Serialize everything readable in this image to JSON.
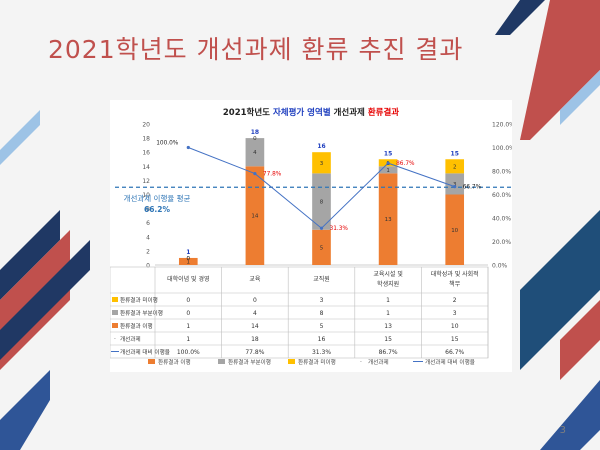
{
  "slide": {
    "title": "2021학년도 개선과제 환류 추진 결과",
    "page_number": "3"
  },
  "chart_data": {
    "type": "bar",
    "title_parts": [
      "2021학년도 ",
      "자체평가 영역별",
      " 개선과제 ",
      "환류결과"
    ],
    "title_colors": [
      "#222222",
      "#1f3fbf",
      "#222222",
      "#e60000"
    ],
    "categories": [
      "대학이념 및 경영",
      "교육",
      "교직원",
      "교육시설 및\n학생지원",
      "대학성과 및 사회적\n책무"
    ],
    "stack_order": [
      "환류결과 이행",
      "환류결과 부분이행",
      "환류결과 미이행"
    ],
    "series": [
      {
        "name": "환류결과 미이행",
        "values": [
          0,
          0,
          3,
          1,
          2
        ],
        "color": "#ffc000",
        "kind": "bar"
      },
      {
        "name": "환류결과 부분이행",
        "values": [
          0,
          4,
          8,
          1,
          3
        ],
        "color": "#a5a5a5",
        "kind": "bar"
      },
      {
        "name": "환류결과 이행",
        "values": [
          1,
          14,
          5,
          13,
          10
        ],
        "color": "#ed7d31",
        "kind": "bar"
      },
      {
        "name": "개선과제",
        "values": [
          1,
          18,
          16,
          15,
          15
        ],
        "color": "#1f3fbf",
        "kind": "total"
      },
      {
        "name": "개선과제 대비 이행율",
        "values": [
          100.0,
          77.8,
          31.3,
          86.7,
          66.7
        ],
        "color": "#4472c4",
        "kind": "line"
      }
    ],
    "rate_labels": [
      "100.0%",
      "77.8%",
      "31.3%",
      "86.7%",
      "66.7%"
    ],
    "rate_label_colors": [
      "#222222",
      "#e60000",
      "#e60000",
      "#e60000",
      "#222222"
    ],
    "table_rows": [
      {
        "name": "환류결과 미이행",
        "cells": [
          "0",
          "0",
          "3",
          "1",
          "2"
        ]
      },
      {
        "name": "환류결과 부분이행",
        "cells": [
          "0",
          "4",
          "8",
          "1",
          "3"
        ]
      },
      {
        "name": "환류결과 이행",
        "cells": [
          "1",
          "14",
          "5",
          "13",
          "10"
        ]
      },
      {
        "name": "개선과제",
        "cells": [
          "1",
          "18",
          "16",
          "15",
          "15"
        ]
      },
      {
        "name": "개선과제 대비 이행율",
        "cells": [
          "100.0%",
          "77.8%",
          "31.3%",
          "86.7%",
          "66.7%"
        ]
      }
    ],
    "legend": [
      "환류결과 이행",
      "환류결과 부분이행",
      "환류결과 미이행",
      "개선과제",
      "개선과제 대비 이행율"
    ],
    "y_left": {
      "min": 0,
      "max": 20,
      "ticks": [
        "0",
        "2",
        "4",
        "6",
        "8",
        "10",
        "12",
        "14",
        "16",
        "18",
        "20"
      ]
    },
    "y_right": {
      "min": 0,
      "max": 120,
      "ticks": [
        "0.0%",
        "20.0%",
        "40.0%",
        "60.0%",
        "80.0%",
        "100.0%",
        "120.0%"
      ]
    },
    "average": {
      "label_line1": "개선과제 이행율 평균",
      "label_line2": "66.2%",
      "value": 66.2,
      "color": "#2e75b6"
    },
    "grid": false
  }
}
